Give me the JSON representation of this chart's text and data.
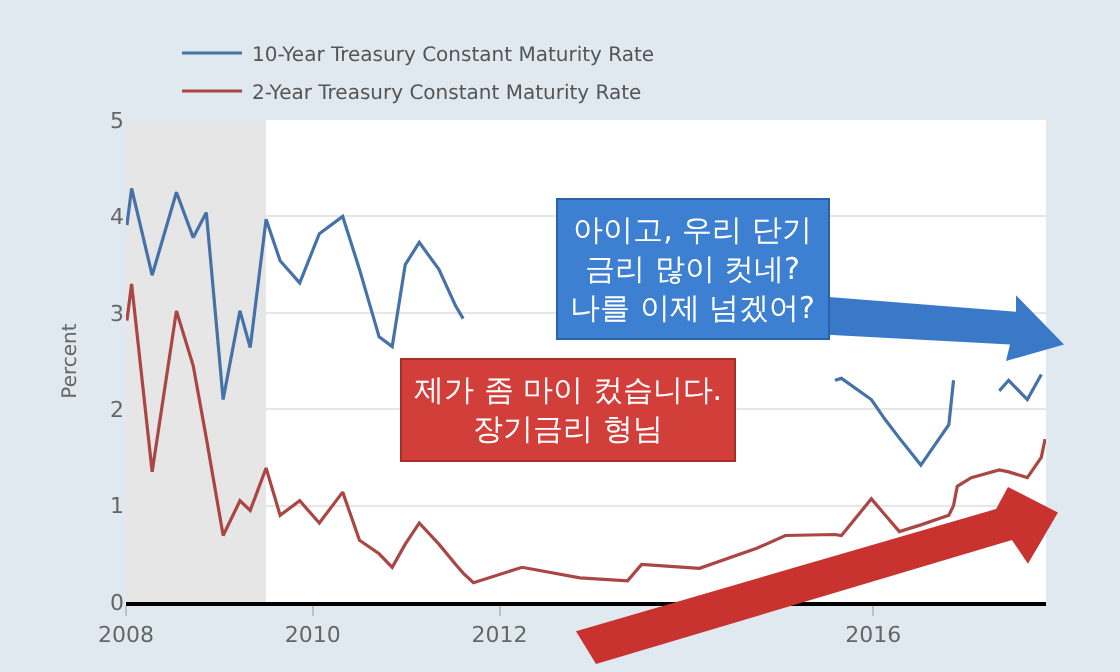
{
  "chart_data": {
    "type": "line",
    "ylabel": "Percent",
    "x": [
      2008.01,
      2008.06,
      2008.28,
      2008.54,
      2008.72,
      2008.86,
      2009.04,
      2009.22,
      2009.33,
      2009.5,
      2009.65,
      2009.86,
      2010.07,
      2010.32,
      2010.5,
      2010.71,
      2010.85,
      2010.99,
      2011.14,
      2011.35,
      2011.53,
      2011.61,
      2011.72,
      2012.24,
      2012.86,
      2013.37,
      2013.52,
      2014.14,
      2014.76,
      2015.06,
      2015.59,
      2015.66,
      2015.98,
      2016.13,
      2016.28,
      2016.51,
      2016.81,
      2016.86,
      2016.9,
      2017.05,
      2017.35,
      2017.45,
      2017.65,
      2017.8,
      2017.84
    ],
    "series": [
      {
        "name": "10-Year Treasury Constant Maturity Rate",
        "color": "#4572a7",
        "values": [
          3.91,
          4.29,
          3.39,
          4.25,
          3.78,
          4.04,
          2.1,
          3.02,
          2.64,
          3.97,
          3.54,
          3.31,
          3.82,
          4.0,
          3.45,
          2.75,
          2.65,
          3.5,
          3.73,
          3.45,
          3.07,
          2.94,
          null,
          null,
          null,
          null,
          null,
          null,
          null,
          null,
          2.3,
          2.32,
          2.1,
          1.89,
          1.7,
          1.42,
          1.84,
          2.3,
          null,
          null,
          2.19,
          2.3,
          2.1,
          2.36,
          null
        ]
      },
      {
        "name": "2-Year Treasury Constant Maturity Rate",
        "color": "#aa4643",
        "values": [
          2.92,
          3.3,
          1.35,
          3.02,
          2.45,
          1.7,
          0.69,
          1.05,
          0.95,
          1.39,
          0.9,
          1.05,
          0.82,
          1.14,
          0.64,
          0.5,
          0.36,
          0.6,
          0.82,
          0.6,
          0.39,
          0.3,
          0.2,
          0.36,
          0.25,
          0.22,
          0.39,
          0.35,
          0.56,
          0.69,
          0.7,
          0.69,
          1.07,
          0.9,
          0.73,
          0.8,
          0.9,
          1.0,
          1.2,
          1.29,
          1.37,
          1.35,
          1.29,
          1.5,
          1.69
        ]
      }
    ],
    "xlim": [
      2008.0,
      2017.85
    ],
    "xticks": [
      2008,
      2010,
      2012,
      2016
    ],
    "ylim": [
      0,
      5
    ],
    "yticks": [
      0,
      1,
      2,
      3,
      4,
      5
    ],
    "bands": [
      {
        "axis": "x",
        "from": 2008.0,
        "to": 2009.5,
        "color": "#e6e6e6"
      }
    ],
    "grid": "y",
    "legend": "top left",
    "marker": "none",
    "line_style": "solid",
    "annotations": [
      "아이고, 우리 단기\n금리 많이 컷네?\n나를 이제 넘겠어?",
      "제가 좀 마이 컸습니다.\n장기금리 형님"
    ]
  }
}
